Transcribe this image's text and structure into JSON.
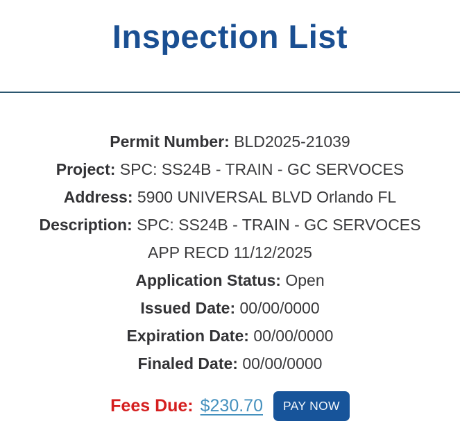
{
  "page": {
    "title": "Inspection List"
  },
  "colors": {
    "title_blue": "#1a4f92",
    "divider": "#2b566f",
    "body_text": "#3a3a3c",
    "fees_red": "#d51f1f",
    "link_blue": "#4691be",
    "button_bg": "#17549a"
  },
  "details": {
    "fields": [
      {
        "label": "Permit Number:",
        "value": "BLD2025-21039"
      },
      {
        "label": "Project:",
        "value": "SPC: SS24B - TRAIN - GC SERVOCES"
      },
      {
        "label": "Address:",
        "value": "5900 UNIVERSAL BLVD Orlando FL"
      },
      {
        "label": "Description:",
        "value": "SPC: SS24B - TRAIN - GC SERVOCES",
        "value_line2": "APP RECD 11/12/2025"
      },
      {
        "label": "Application Status:",
        "value": "Open"
      },
      {
        "label": "Issued Date:",
        "value": "00/00/0000"
      },
      {
        "label": "Expiration Date:",
        "value": "00/00/0000"
      },
      {
        "label": "Finaled Date:",
        "value": "00/00/0000"
      }
    ]
  },
  "fees": {
    "label": "Fees Due:",
    "amount": "$230.70",
    "pay_button": "PAY NOW"
  }
}
